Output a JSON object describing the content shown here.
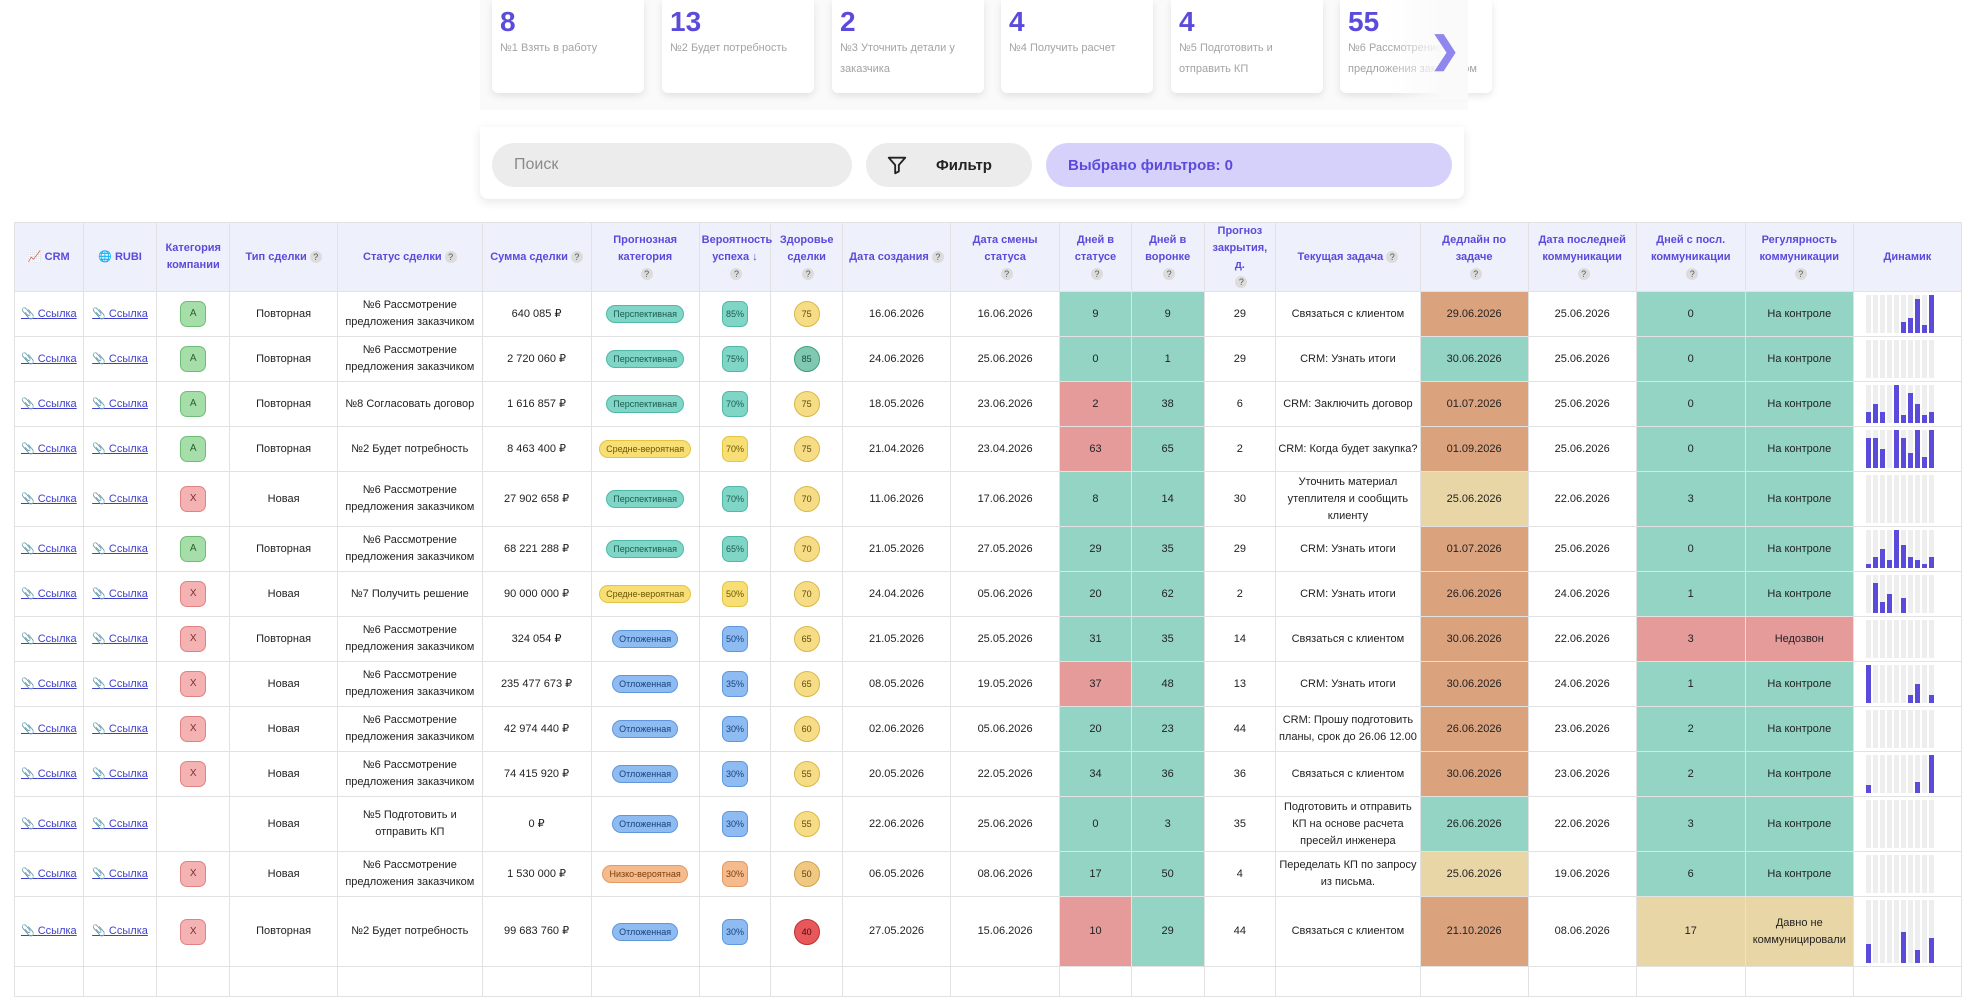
{
  "stage_cards": [
    {
      "count": "8",
      "label": "№1 Взять в работу"
    },
    {
      "count": "13",
      "label": "№2 Будет потребность"
    },
    {
      "count": "2",
      "label": "№3 Уточнить детали у заказчика"
    },
    {
      "count": "4",
      "label": "№4 Получить расчет"
    },
    {
      "count": "4",
      "label": "№5 Подготовить и отправить КП"
    },
    {
      "count": "55",
      "label": "№6 Рассмотрение предложения заказчиком"
    }
  ],
  "search": {
    "placeholder": "Поиск",
    "value": ""
  },
  "filter": {
    "button_label": "Фильтр",
    "selected_label": "Выбрано фильтров: 0"
  },
  "colors": {
    "accent": "#5b4bdb",
    "teal": "#93d4c4",
    "red": "#e69b9b",
    "orange": "#dba27e",
    "beige": "#e9d6a6"
  },
  "table": {
    "headers": {
      "crm": "CRM",
      "rubi": "RUBI",
      "company_category": "Категория компании",
      "deal_type": "Тип сделки",
      "deal_status": "Статус сделки",
      "deal_sum": "Сумма сделки",
      "forecast_category": "Прогнозная категория",
      "success_prob": "Вероятность успеха ↓",
      "deal_health": "Здоровье сделки",
      "created": "Дата создания",
      "status_changed": "Дата смены статуса",
      "days_in_status": "Дней в статусе",
      "days_in_funnel": "Дней в воронке",
      "close_forecast": "Прогноз закрытия, д.",
      "current_task": "Текущая задача",
      "task_deadline": "Дедлайн по задаче",
      "last_comm_date": "Дата последней коммуникации",
      "days_since_comm": "Дней с посл. коммуникации",
      "comm_regularity": "Регулярность коммуникации",
      "dynamics": "Динамик"
    },
    "link_label": "Ссылка",
    "rows": [
      {
        "cat": "А",
        "type": "Повторная",
        "status": "№6 Рассмотрение предложения заказчиком",
        "sum": "640 085 ₽",
        "fc": "Перспективная",
        "prob": "85%",
        "health": "75",
        "created": "16.06.2026",
        "changed": "16.06.2026",
        "dis": "9",
        "dif": "9",
        "close": "29",
        "task": "Связаться с клиентом",
        "deadline": "29.06.2026",
        "last": "25.06.2026",
        "dsc": "0",
        "reg": "На контроле",
        "dyn": [
          0,
          0,
          0,
          0,
          0,
          0.3,
          0.4,
          0.9,
          0.2,
          1
        ]
      },
      {
        "cat": "А",
        "type": "Повторная",
        "status": "№6 Рассмотрение предложения заказчиком",
        "sum": "2 720 060 ₽",
        "fc": "Перспективная",
        "prob": "75%",
        "health": "85",
        "created": "24.06.2026",
        "changed": "25.06.2026",
        "dis": "0",
        "dif": "1",
        "close": "29",
        "task": "CRM: Узнать итоги",
        "deadline": "30.06.2026",
        "last": "25.06.2026",
        "dsc": "0",
        "reg": "На контроле",
        "dyn": [
          0,
          0,
          0,
          0,
          0,
          0,
          0,
          0,
          0,
          0
        ]
      },
      {
        "cat": "А",
        "type": "Повторная",
        "status": "№8 Согласовать договор",
        "sum": "1 616 857 ₽",
        "fc": "Перспективная",
        "prob": "70%",
        "health": "75",
        "created": "18.05.2026",
        "changed": "23.06.2026",
        "dis": "2",
        "dif": "38",
        "close": "6",
        "task": "CRM: Заключить договор",
        "deadline": "01.07.2026",
        "last": "25.06.2026",
        "dsc": "0",
        "reg": "На контроле",
        "dyn": [
          0.3,
          0.5,
          0.3,
          0,
          1,
          0.2,
          0.8,
          0.5,
          0.2,
          0.3
        ]
      },
      {
        "cat": "А",
        "type": "Повторная",
        "status": "№2 Будет потребность",
        "sum": "8 463 400 ₽",
        "fc": "Средне-вероятная",
        "prob": "70%",
        "health": "75",
        "created": "21.04.2026",
        "changed": "23.04.2026",
        "dis": "63",
        "dif": "65",
        "close": "2",
        "task": "CRM: Когда будет закупка?",
        "deadline": "01.09.2026",
        "last": "25.06.2026",
        "dsc": "0",
        "reg": "На контроле",
        "dyn": [
          0.8,
          0.8,
          0.5,
          0,
          1,
          0.8,
          0.4,
          1,
          0.3,
          1
        ]
      },
      {
        "cat": "Х",
        "type": "Новая",
        "status": "№6 Рассмотрение предложения заказчиком",
        "sum": "27 902 658 ₽",
        "fc": "Перспективная",
        "prob": "70%",
        "health": "70",
        "created": "11.06.2026",
        "changed": "17.06.2026",
        "dis": "8",
        "dif": "14",
        "close": "30",
        "task": "Уточнить материал утеплителя и сообщить клиенту",
        "deadline": "25.06.2026",
        "last": "22.06.2026",
        "dsc": "3",
        "reg": "На контроле",
        "dyn": [
          0,
          0,
          0,
          0,
          0,
          0,
          0,
          0,
          0,
          0
        ]
      },
      {
        "cat": "А",
        "type": "Повторная",
        "status": "№6 Рассмотрение предложения заказчиком",
        "sum": "68 221 288 ₽",
        "fc": "Перспективная",
        "prob": "65%",
        "health": "70",
        "created": "21.05.2026",
        "changed": "27.05.2026",
        "dis": "29",
        "dif": "35",
        "close": "29",
        "task": "CRM: Узнать итоги",
        "deadline": "01.07.2026",
        "last": "25.06.2026",
        "dsc": "0",
        "reg": "На контроле",
        "dyn": [
          0.1,
          0.3,
          0.5,
          0.2,
          1,
          0.6,
          0.3,
          0.2,
          0.1,
          0.3
        ]
      },
      {
        "cat": "Х",
        "type": "Новая",
        "status": "№7 Получить решение",
        "sum": "90 000 000 ₽",
        "fc": "Средне-вероятная",
        "prob": "50%",
        "health": "70",
        "created": "24.04.2026",
        "changed": "05.06.2026",
        "dis": "20",
        "dif": "62",
        "close": "2",
        "task": "CRM: Узнать итоги",
        "deadline": "26.06.2026",
        "last": "24.06.2026",
        "dsc": "1",
        "reg": "На контроле",
        "dyn": [
          0,
          0.8,
          0.3,
          0.5,
          0,
          0.4,
          0,
          0,
          0,
          0
        ]
      },
      {
        "cat": "Х",
        "type": "Повторная",
        "status": "№6 Рассмотрение предложения заказчиком",
        "sum": "324 054 ₽",
        "fc": "Отложенная",
        "prob": "50%",
        "health": "65",
        "created": "21.05.2026",
        "changed": "25.05.2026",
        "dis": "31",
        "dif": "35",
        "close": "14",
        "task": "Связаться с клиентом",
        "deadline": "30.06.2026",
        "last": "22.06.2026",
        "dsc": "3",
        "reg": "Недозвон",
        "dyn": [
          0,
          0,
          0,
          0,
          0,
          0,
          0,
          0,
          0,
          0
        ]
      },
      {
        "cat": "Х",
        "type": "Новая",
        "status": "№6 Рассмотрение предложения заказчиком",
        "sum": "235 477 673 ₽",
        "fc": "Отложенная",
        "prob": "35%",
        "health": "65",
        "created": "08.05.2026",
        "changed": "19.05.2026",
        "dis": "37",
        "dif": "48",
        "close": "13",
        "task": "CRM: Узнать итоги",
        "deadline": "30.06.2026",
        "last": "24.06.2026",
        "dsc": "1",
        "reg": "На контроле",
        "dyn": [
          1,
          0,
          0,
          0,
          0,
          0,
          0.2,
          0.5,
          0,
          0.2
        ]
      },
      {
        "cat": "Х",
        "type": "Новая",
        "status": "№6 Рассмотрение предложения заказчиком",
        "sum": "42 974 440 ₽",
        "fc": "Отложенная",
        "prob": "30%",
        "health": "60",
        "created": "02.06.2026",
        "changed": "05.06.2026",
        "dis": "20",
        "dif": "23",
        "close": "44",
        "task": "CRM: Прошу подготовить планы, срок до 26.06 12.00",
        "deadline": "26.06.2026",
        "last": "23.06.2026",
        "dsc": "2",
        "reg": "На контроле",
        "dyn": [
          0,
          0,
          0,
          0,
          0,
          0,
          0,
          0,
          0,
          0
        ]
      },
      {
        "cat": "Х",
        "type": "Новая",
        "status": "№6 Рассмотрение предложения заказчиком",
        "sum": "74 415 920 ₽",
        "fc": "Отложенная",
        "prob": "30%",
        "health": "55",
        "created": "20.05.2026",
        "changed": "22.05.2026",
        "dis": "34",
        "dif": "36",
        "close": "36",
        "task": "Связаться с клиентом",
        "deadline": "30.06.2026",
        "last": "23.06.2026",
        "dsc": "2",
        "reg": "На контроле",
        "dyn": [
          0.2,
          0,
          0,
          0,
          0,
          0,
          0,
          0.3,
          0,
          1
        ]
      },
      {
        "cat": "",
        "type": "Новая",
        "status": "№5 Подготовить и отправить КП",
        "sum": "0 ₽",
        "fc": "Отложенная",
        "prob": "30%",
        "health": "55",
        "created": "22.06.2026",
        "changed": "25.06.2026",
        "dis": "0",
        "dif": "3",
        "close": "35",
        "task": "Подготовить и отправить КП на основе расчета пресейл инженера",
        "deadline": "26.06.2026",
        "last": "22.06.2026",
        "dsc": "3",
        "reg": "На контроле",
        "dyn": [
          0,
          0,
          0,
          0,
          0,
          0,
          0,
          0,
          0,
          0
        ]
      },
      {
        "cat": "Х",
        "type": "Новая",
        "status": "№6 Рассмотрение предложения заказчиком",
        "sum": "1 530 000 ₽",
        "fc": "Низко-вероятная",
        "prob": "30%",
        "health": "50",
        "created": "06.05.2026",
        "changed": "08.06.2026",
        "dis": "17",
        "dif": "50",
        "close": "4",
        "task": "Переделать КП по запросу из письма.",
        "deadline": "25.06.2026",
        "last": "19.06.2026",
        "dsc": "6",
        "reg": "На контроле",
        "dyn": [
          0,
          0,
          0,
          0,
          0,
          0,
          0,
          0,
          0,
          0
        ]
      },
      {
        "cat": "Х",
        "type": "Повторная",
        "status": "№2 Будет потребность",
        "sum": "99 683 760 ₽",
        "fc": "Отложенная",
        "prob": "30%",
        "health": "40",
        "created": "27.05.2026",
        "changed": "15.06.2026",
        "dis": "10",
        "dif": "29",
        "close": "44",
        "task": "Связаться с клиентом",
        "deadline": "21.10.2026",
        "last": "08.06.2026",
        "dsc": "17",
        "reg": "Давно не коммуницировали",
        "dyn": [
          0.3,
          0,
          0,
          0,
          0,
          0.5,
          0,
          0.2,
          0,
          0.4
        ]
      },
      {
        "cat": "",
        "type": "",
        "status": "",
        "sum": "",
        "fc": "",
        "prob": "",
        "health": "",
        "created": "",
        "changed": "",
        "dis": "",
        "dif": "",
        "close": "",
        "task": "",
        "deadline": "",
        "last": "",
        "dsc": "",
        "reg": "",
        "dyn": []
      }
    ]
  }
}
